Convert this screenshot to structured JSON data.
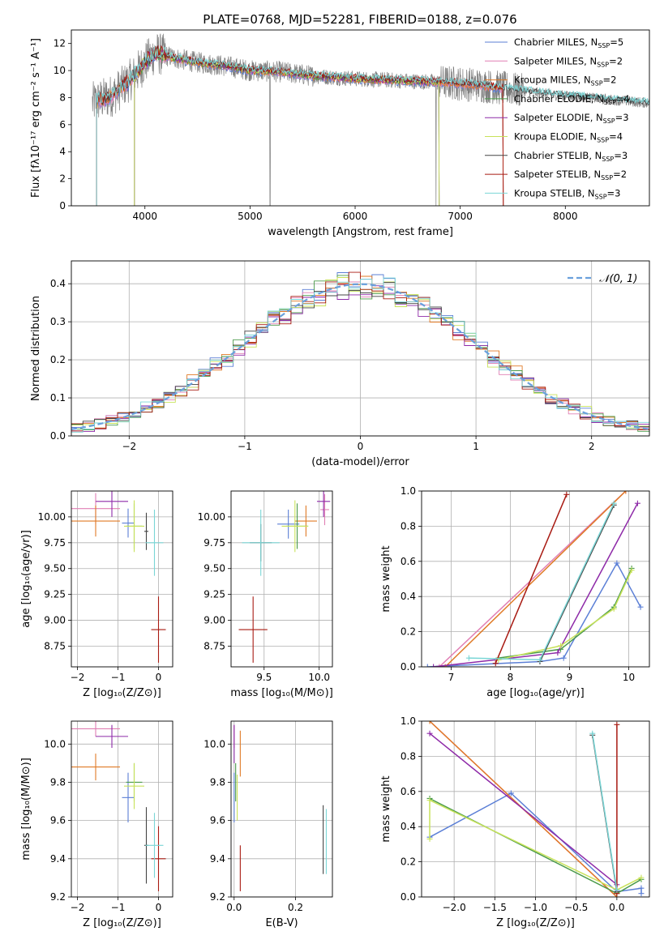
{
  "figure": {
    "title": "PLATE=0768, MJD=52281, FIBERID=0188, z=0.076"
  },
  "colors": {
    "chabrier_miles": "#5b7fd6",
    "salpeter_miles": "#e07fb4",
    "kroupa_miles": "#e07a26",
    "chabrier_elodie": "#4a9a4a",
    "salpeter_elodie": "#8e2aa8",
    "kroupa_elodie": "#c8e25a",
    "chabrier_stelib": "#444444",
    "salpeter_stelib": "#a81a12",
    "kroupa_stelib": "#7ad6d6",
    "data": "#7f7f7f",
    "normal": "#6aa0dc"
  },
  "chart_data": [
    {
      "id": "spectrum",
      "type": "line",
      "xlabel": "wavelength [Angstrom, rest frame]",
      "ylabel": "Flux [fλ10⁻¹⁷ erg cm⁻² s⁻¹ A⁻¹]",
      "xlim": [
        3300,
        8800
      ],
      "ylim": [
        0,
        13
      ],
      "xticks": [
        "4000",
        "5000",
        "6000",
        "7000",
        "8000"
      ],
      "yticks": [
        "0",
        "2",
        "4",
        "6",
        "8",
        "10",
        "12"
      ],
      "legend_position": "top-right",
      "legend": [
        {
          "key": "chabrier_miles",
          "label": "Chabrier MILES, N",
          "sub": "SSP",
          "val": "=5"
        },
        {
          "key": "salpeter_miles",
          "label": "Salpeter MILES, N",
          "sub": "SSP",
          "val": "=2"
        },
        {
          "key": "kroupa_miles",
          "label": "Kroupa MILES, N",
          "sub": "SSP",
          "val": "=2"
        },
        {
          "key": "chabrier_elodie",
          "label": "Chabrier ELODIE, N",
          "sub": "SSP",
          "val": "=4"
        },
        {
          "key": "salpeter_elodie",
          "label": "Salpeter ELODIE, N",
          "sub": "SSP",
          "val": "=3"
        },
        {
          "key": "kroupa_elodie",
          "label": "Kroupa ELODIE, N",
          "sub": "SSP",
          "val": "=4"
        },
        {
          "key": "chabrier_stelib",
          "label": "Chabrier STELIB, N",
          "sub": "SSP",
          "val": "=3"
        },
        {
          "key": "salpeter_stelib",
          "label": "Salpeter STELIB, N",
          "sub": "SSP",
          "val": "=2"
        },
        {
          "key": "kroupa_stelib",
          "label": "Kroupa STELIB, N",
          "sub": "SSP",
          "val": "=3"
        }
      ],
      "continuum": {
        "x": [
          3500,
          3700,
          3900,
          4000,
          4100,
          4300,
          4500,
          4800,
          5000,
          5300,
          5600,
          6000,
          6300,
          6600,
          6900,
          7200,
          7400,
          7600,
          7900,
          8200,
          8500,
          8800
        ],
        "y": [
          7.6,
          8.2,
          9.6,
          10.6,
          11.3,
          10.9,
          10.6,
          10.3,
          10.0,
          9.9,
          9.6,
          9.4,
          9.3,
          9.2,
          9.1,
          8.9,
          8.7,
          8.5,
          8.2,
          8.0,
          7.8,
          7.6
        ]
      }
    },
    {
      "id": "residuals",
      "type": "histogram",
      "xlabel": "(data-model)/error",
      "ylabel": "Normed distribution",
      "xlim": [
        -2.5,
        2.5
      ],
      "ylim": [
        0,
        0.46
      ],
      "xticks": [
        "−2",
        "−1",
        "0",
        "1",
        "2"
      ],
      "yticks": [
        "0.0",
        "0.1",
        "0.2",
        "0.3",
        "0.4"
      ],
      "legend_position": "top-right",
      "legend_label": "𝒩(0, 1)",
      "bin_width": 0.1,
      "bin_start": -2.5,
      "normal_mean": 0,
      "normal_sigma": 1
    },
    {
      "id": "age-vs-z",
      "type": "scatter",
      "xlabel": "Z [log₁₀(Z/Z⊙)]",
      "ylabel": "age  [log₁₀(age/yr)]",
      "xlim": [
        -2.15,
        0.35
      ],
      "ylim": [
        8.55,
        10.25
      ],
      "xticks": [
        "−2",
        "−1",
        "0"
      ],
      "yticks": [
        "8.75",
        "9.00",
        "9.25",
        "9.50",
        "9.75",
        "10.00"
      ],
      "points": [
        {
          "key": "chabrier_miles",
          "x": -0.75,
          "xerr": 0.15,
          "y": 9.94,
          "yerr": 0.14
        },
        {
          "key": "salpeter_miles",
          "x": -1.55,
          "xerr": 0.6,
          "y": 10.08,
          "yerr": 0.15
        },
        {
          "key": "kroupa_miles",
          "x": -1.55,
          "xerr": 0.6,
          "y": 9.96,
          "yerr": 0.15
        },
        {
          "key": "chabrier_elodie",
          "x": -0.6,
          "xerr": 0.2,
          "y": 9.91,
          "yerr": 0.22
        },
        {
          "key": "salpeter_elodie",
          "x": -1.15,
          "xerr": 0.4,
          "y": 10.15,
          "yerr": 0.15
        },
        {
          "key": "kroupa_elodie",
          "x": -0.6,
          "xerr": 0.25,
          "y": 9.91,
          "yerr": 0.25
        },
        {
          "key": "chabrier_stelib",
          "x": -0.3,
          "xerr": 0.05,
          "y": 9.86,
          "yerr": 0.18
        },
        {
          "key": "salpeter_stelib",
          "x": 0.0,
          "xerr": 0.18,
          "y": 8.91,
          "yerr": 0.32
        },
        {
          "key": "kroupa_stelib",
          "x": -0.1,
          "xerr": 0.22,
          "y": 9.75,
          "yerr": 0.32
        }
      ]
    },
    {
      "id": "age-vs-mass",
      "type": "scatter",
      "xlabel": "mass [log₁₀(M/M⊙)]",
      "ylabel": "",
      "xlim": [
        9.2,
        10.12
      ],
      "ylim": [
        8.55,
        10.25
      ],
      "xticks": [
        "9.5",
        "10.0"
      ],
      "yticks": [
        "8.75",
        "9.00",
        "9.25",
        "9.50",
        "9.75",
        "10.00"
      ],
      "points": [
        {
          "key": "chabrier_miles",
          "x": 9.72,
          "xerr": 0.1,
          "y": 9.93,
          "yerr": 0.14
        },
        {
          "key": "salpeter_miles",
          "x": 10.05,
          "xerr": 0.04,
          "y": 10.07,
          "yerr": 0.15
        },
        {
          "key": "kroupa_miles",
          "x": 9.88,
          "xerr": 0.1,
          "y": 9.96,
          "yerr": 0.15
        },
        {
          "key": "chabrier_elodie",
          "x": 9.8,
          "xerr": 0.1,
          "y": 9.91,
          "yerr": 0.22
        },
        {
          "key": "salpeter_elodie",
          "x": 10.04,
          "xerr": 0.06,
          "y": 10.15,
          "yerr": 0.15
        },
        {
          "key": "kroupa_elodie",
          "x": 9.78,
          "xerr": 0.12,
          "y": 9.91,
          "yerr": 0.25
        },
        {
          "key": "chabrier_stelib",
          "x": 9.47,
          "xerr": 0.1,
          "y": 9.75,
          "yerr": 0.18
        },
        {
          "key": "salpeter_stelib",
          "x": 9.4,
          "xerr": 0.13,
          "y": 8.91,
          "yerr": 0.32
        },
        {
          "key": "kroupa_stelib",
          "x": 9.47,
          "xerr": 0.17,
          "y": 9.75,
          "yerr": 0.32
        }
      ]
    },
    {
      "id": "weight-vs-age",
      "type": "line",
      "xlabel": "age  [log₁₀(age/yr)]",
      "ylabel": "mass weight",
      "xlim": [
        6.5,
        10.35
      ],
      "ylim": [
        0,
        1
      ],
      "xticks": [
        "7",
        "8",
        "9",
        "10"
      ],
      "yticks": [
        "0.0",
        "0.2",
        "0.4",
        "0.6",
        "0.8",
        "1.0"
      ],
      "series": [
        {
          "key": "chabrier_miles",
          "x": [
            6.6,
            8.5,
            8.9,
            9.8,
            10.2
          ],
          "y": [
            0.0,
            0.03,
            0.05,
            0.59,
            0.34
          ]
        },
        {
          "key": "salpeter_miles",
          "x": [
            6.8,
            9.95
          ],
          "y": [
            0.0,
            1.0
          ]
        },
        {
          "key": "kroupa_miles",
          "x": [
            6.9,
            9.95
          ],
          "y": [
            0.0,
            1.0
          ]
        },
        {
          "key": "chabrier_elodie",
          "x": [
            7.8,
            8.85,
            9.75,
            10.05
          ],
          "y": [
            0.05,
            0.1,
            0.34,
            0.56
          ]
        },
        {
          "key": "salpeter_elodie",
          "x": [
            6.7,
            8.8,
            10.15
          ],
          "y": [
            0.0,
            0.08,
            0.93
          ]
        },
        {
          "key": "kroupa_elodie",
          "x": [
            7.8,
            8.85,
            9.75,
            10.05
          ],
          "y": [
            0.04,
            0.12,
            0.33,
            0.55
          ]
        },
        {
          "key": "chabrier_stelib",
          "x": [
            8.5,
            9.75
          ],
          "y": [
            0.03,
            0.92
          ]
        },
        {
          "key": "salpeter_stelib",
          "x": [
            7.75,
            8.95
          ],
          "y": [
            0.02,
            0.98
          ]
        },
        {
          "key": "kroupa_stelib",
          "x": [
            7.3,
            8.5,
            9.75
          ],
          "y": [
            0.05,
            0.04,
            0.93
          ]
        }
      ]
    },
    {
      "id": "mass-vs-z",
      "type": "scatter",
      "xlabel": "Z [log₁₀(Z/Z⊙)]",
      "ylabel": "mass [log₁₀(M/M⊙)]",
      "xlim": [
        -2.15,
        0.35
      ],
      "ylim": [
        9.2,
        10.12
      ],
      "xticks": [
        "−2",
        "−1",
        "0"
      ],
      "yticks": [
        "9.2",
        "9.4",
        "9.6",
        "9.8",
        "10.0"
      ],
      "points": [
        {
          "key": "chabrier_miles",
          "x": -0.75,
          "xerr": 0.15,
          "y": 9.72,
          "yerr": 0.13
        },
        {
          "key": "salpeter_miles",
          "x": -1.55,
          "xerr": 0.6,
          "y": 10.08,
          "yerr": 0.04
        },
        {
          "key": "kroupa_miles",
          "x": -1.55,
          "xerr": 0.6,
          "y": 9.88,
          "yerr": 0.07
        },
        {
          "key": "chabrier_elodie",
          "x": -0.6,
          "xerr": 0.2,
          "y": 9.8,
          "yerr": 0.1
        },
        {
          "key": "salpeter_elodie",
          "x": -1.15,
          "xerr": 0.4,
          "y": 10.04,
          "yerr": 0.06
        },
        {
          "key": "kroupa_elodie",
          "x": -0.6,
          "xerr": 0.25,
          "y": 9.78,
          "yerr": 0.12
        },
        {
          "key": "chabrier_stelib",
          "x": -0.3,
          "xerr": 0.05,
          "y": 9.47,
          "yerr": 0.2
        },
        {
          "key": "salpeter_stelib",
          "x": 0.0,
          "xerr": 0.18,
          "y": 9.4,
          "yerr": 0.17
        },
        {
          "key": "kroupa_stelib",
          "x": -0.1,
          "xerr": 0.22,
          "y": 9.47,
          "yerr": 0.17
        }
      ]
    },
    {
      "id": "mass-vs-ebv",
      "type": "scatter",
      "xlabel": "E(B-V)",
      "ylabel": "",
      "xlim": [
        -0.01,
        0.32
      ],
      "ylim": [
        9.2,
        10.12
      ],
      "xticks": [
        "0.0",
        "0.2"
      ],
      "yticks": [
        "9.2",
        "9.4",
        "9.6",
        "9.8",
        "10.0"
      ],
      "points": [
        {
          "key": "chabrier_miles",
          "x": 0.0,
          "xerr": 0,
          "y": 9.72,
          "yerr": 0.13
        },
        {
          "key": "salpeter_miles",
          "x": 0.0,
          "xerr": 0,
          "y": 10.04,
          "yerr": 0.06
        },
        {
          "key": "kroupa_miles",
          "x": 0.02,
          "xerr": 0,
          "y": 9.95,
          "yerr": 0.12
        },
        {
          "key": "chabrier_elodie",
          "x": 0.005,
          "xerr": 0,
          "y": 9.8,
          "yerr": 0.1
        },
        {
          "key": "salpeter_elodie",
          "x": 0.0,
          "xerr": 0,
          "y": 10.0,
          "yerr": 0.1
        },
        {
          "key": "kroupa_elodie",
          "x": 0.01,
          "xerr": 0,
          "y": 9.72,
          "yerr": 0.12
        },
        {
          "key": "chabrier_stelib",
          "x": 0.29,
          "xerr": 0,
          "y": 9.5,
          "yerr": 0.18
        },
        {
          "key": "salpeter_stelib",
          "x": 0.02,
          "xerr": 0,
          "y": 9.35,
          "yerr": 0.12
        },
        {
          "key": "kroupa_stelib",
          "x": 0.3,
          "xerr": 0,
          "y": 9.49,
          "yerr": 0.17
        }
      ]
    },
    {
      "id": "weight-vs-z",
      "type": "line",
      "xlabel": "Z [log₁₀(Z/Z⊙)]",
      "ylabel": "mass weight",
      "xlim": [
        -2.4,
        0.4
      ],
      "ylim": [
        0,
        1
      ],
      "xticks": [
        "−2.0",
        "−1.5",
        "−1.0",
        "−0.5",
        "0.0"
      ],
      "yticks": [
        "0.0",
        "0.2",
        "0.4",
        "0.6",
        "0.8",
        "1.0"
      ],
      "series": [
        {
          "key": "chabrier_miles",
          "x": [
            -2.3,
            -1.3,
            0.0,
            0.3,
            0.3
          ],
          "y": [
            0.34,
            0.59,
            0.03,
            0.05,
            0.02
          ]
        },
        {
          "key": "salpeter_miles",
          "x": [
            -2.3,
            0.0
          ],
          "y": [
            1.0,
            0.0
          ]
        },
        {
          "key": "kroupa_miles",
          "x": [
            -2.3,
            0.0
          ],
          "y": [
            1.0,
            0.0
          ]
        },
        {
          "key": "chabrier_elodie",
          "x": [
            -2.3,
            0.0,
            0.3
          ],
          "y": [
            0.56,
            0.02,
            0.1
          ]
        },
        {
          "key": "salpeter_elodie",
          "x": [
            -2.3,
            0.0
          ],
          "y": [
            0.93,
            0.07
          ]
        },
        {
          "key": "kroupa_elodie",
          "x": [
            -2.3,
            -2.3,
            0.0,
            0.3
          ],
          "y": [
            0.33,
            0.55,
            0.04,
            0.11
          ]
        },
        {
          "key": "chabrier_stelib",
          "x": [
            -0.3,
            0.0
          ],
          "y": [
            0.92,
            0.03
          ]
        },
        {
          "key": "salpeter_stelib",
          "x": [
            0.0,
            0.0
          ],
          "y": [
            0.98,
            0.02
          ]
        },
        {
          "key": "kroupa_stelib",
          "x": [
            -0.3,
            0.0
          ],
          "y": [
            0.93,
            0.04
          ]
        }
      ]
    }
  ]
}
